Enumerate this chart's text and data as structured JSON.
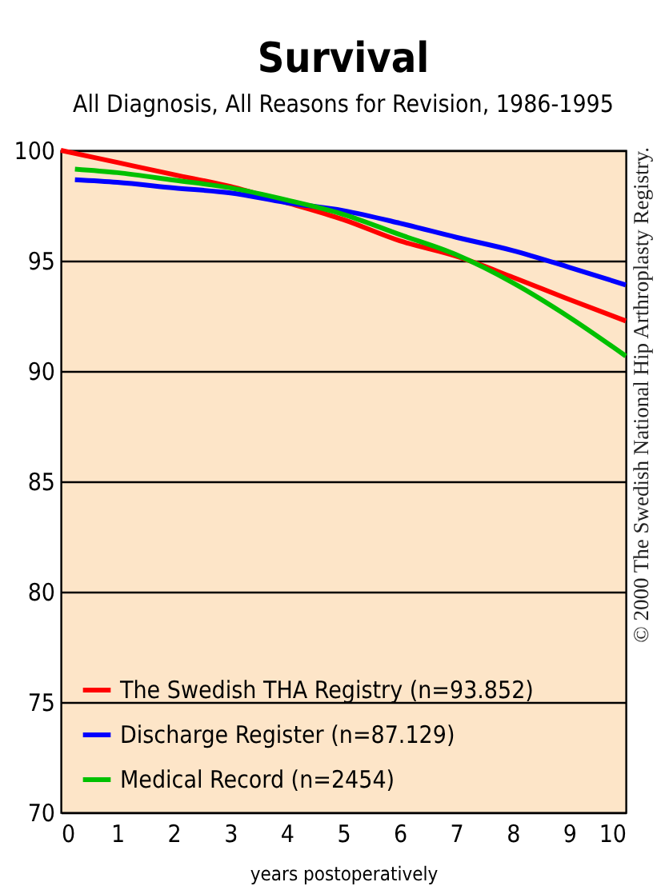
{
  "chart_data": {
    "type": "line",
    "title": "Survival",
    "subtitle": "All Diagnosis, All Reasons for Revision, 1986-1995",
    "xlabel": "years postoperatively",
    "x": [
      0,
      1,
      2,
      3,
      4,
      5,
      6,
      7,
      8,
      9,
      10
    ],
    "series": [
      {
        "name": "The Swedish THA Registry (n=93.852)",
        "color": "#ff0000",
        "values": [
          100,
          99.45,
          98.9,
          98.36,
          97.63,
          96.86,
          95.9,
          95.2,
          94.25,
          93.24,
          92.27
        ]
      },
      {
        "name": "Discharge Register (n=87.129)",
        "color": "#0000ff",
        "x": [
          0.25,
          1,
          2,
          3,
          4,
          5,
          6,
          7,
          8,
          9,
          10
        ],
        "values": [
          98.67,
          98.55,
          98.3,
          98.07,
          97.63,
          97.27,
          96.7,
          96.06,
          95.46,
          94.7,
          93.9
        ]
      },
      {
        "name": "Medical Record (n=2454)",
        "color": "#00c000",
        "x": [
          0.25,
          1,
          2,
          3,
          4,
          5,
          6,
          7,
          8,
          9,
          10
        ],
        "values": [
          99.15,
          98.99,
          98.65,
          98.3,
          97.75,
          97.1,
          96.18,
          95.27,
          94.0,
          92.44,
          90.68
        ]
      }
    ],
    "xlim": [
      0,
      10
    ],
    "xticks": [
      0,
      1,
      2,
      3,
      4,
      5,
      6,
      7,
      8,
      9,
      10
    ],
    "ylim": [
      70,
      100
    ],
    "yticks": [
      70,
      75,
      80,
      85,
      90,
      95,
      100
    ],
    "grid": "y",
    "legend": "bottom left",
    "annotations": [
      "© 2000 The Swedish National Hip Arthroplasty Registry."
    ]
  }
}
